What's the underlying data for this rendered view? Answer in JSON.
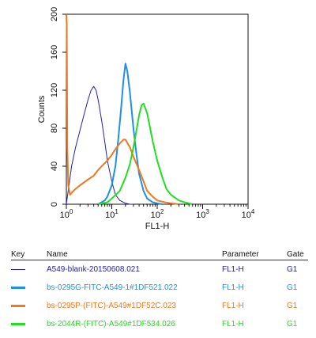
{
  "chart_data": {
    "type": "line",
    "title": "",
    "xlabel": "FL1-H",
    "ylabel": "Counts",
    "xscale": "log",
    "xlim": [
      1,
      10000
    ],
    "ylim": [
      0,
      200
    ],
    "x_ticks": [
      {
        "value": 1,
        "base": "10",
        "exp": "0"
      },
      {
        "value": 10,
        "base": "10",
        "exp": "1"
      },
      {
        "value": 100,
        "base": "10",
        "exp": "2"
      },
      {
        "value": 1000,
        "base": "10",
        "exp": "3"
      },
      {
        "value": 10000,
        "base": "10",
        "exp": "4"
      }
    ],
    "y_ticks": [
      "0",
      "40",
      "80",
      "120",
      "160",
      "200"
    ],
    "grid": false,
    "legend_placement": "below",
    "series": [
      {
        "name": "A549-blank-20150608.021",
        "color": "#2222aa",
        "line": "thin",
        "x": [
          1,
          1.3,
          1.6,
          2,
          2.5,
          3,
          3.5,
          4,
          4.5,
          5,
          6,
          7,
          8,
          10,
          12,
          15,
          20,
          25,
          30
        ],
        "y": [
          0,
          40,
          60,
          78,
          96,
          110,
          120,
          124,
          120,
          110,
          88,
          66,
          46,
          24,
          10,
          4,
          1,
          0,
          0
        ]
      },
      {
        "name": "bs-0295G-FITC-A549-1#1DF521.022",
        "color": "#1e90e6",
        "line": "thick",
        "x": [
          5,
          7,
          8,
          10,
          12,
          14,
          16,
          18,
          20,
          22,
          25,
          30,
          35,
          40,
          50,
          60,
          80,
          100,
          130
        ],
        "y": [
          0,
          4,
          8,
          20,
          40,
          70,
          100,
          130,
          148,
          140,
          118,
          80,
          52,
          32,
          14,
          6,
          2,
          1,
          0
        ]
      },
      {
        "name": "bs-0295P-(FITC)-A549#1DF52C.023",
        "color": "#f07820",
        "line": "thick",
        "x": [
          1,
          1.02,
          1.05,
          1.1,
          1.2,
          1.5,
          2,
          3,
          4,
          5,
          6,
          8,
          10,
          12,
          15,
          18,
          20,
          25,
          30,
          40,
          50,
          60,
          80,
          100,
          150,
          200,
          300
        ],
        "y": [
          200,
          190,
          60,
          20,
          10,
          15,
          20,
          26,
          30,
          36,
          40,
          46,
          52,
          58,
          64,
          68,
          68,
          60,
          50,
          36,
          24,
          14,
          8,
          4,
          2,
          1,
          0
        ]
      },
      {
        "name": "bs-2044R-(FITC)-A549#1DF534.026",
        "color": "#22dd22",
        "line": "thick",
        "x": [
          5,
          8,
          10,
          15,
          20,
          25,
          30,
          35,
          40,
          45,
          50,
          60,
          70,
          80,
          100,
          130,
          160,
          200,
          300,
          400,
          600
        ],
        "y": [
          0,
          2,
          6,
          14,
          28,
          42,
          60,
          78,
          94,
          104,
          106,
          96,
          80,
          66,
          46,
          28,
          16,
          10,
          4,
          2,
          0
        ]
      }
    ]
  },
  "key": {
    "headers": {
      "key": "Key",
      "name": "Name",
      "parameter": "Parameter",
      "gate": "Gate"
    },
    "rows": [
      {
        "name": "A549-blank-20150608.021",
        "parameter": "FL1-H",
        "gate": "G1",
        "color": "#2222aa",
        "line": "thin"
      },
      {
        "name": "bs-0295G-FITC-A549-1#1DF521.022",
        "parameter": "FL1-H",
        "gate": "G1",
        "color": "#1e90e6",
        "line": "thick"
      },
      {
        "name": "bs-0295P-(FITC)-A549#1DF52C.023",
        "parameter": "FL1-H",
        "gate": "G1",
        "color": "#f07820",
        "line": "thick"
      },
      {
        "name": "bs-2044R-(FITC)-A549#1DF534.026",
        "parameter": "FL1-H",
        "gate": "G1",
        "color": "#22dd22",
        "line": "thick"
      }
    ]
  }
}
